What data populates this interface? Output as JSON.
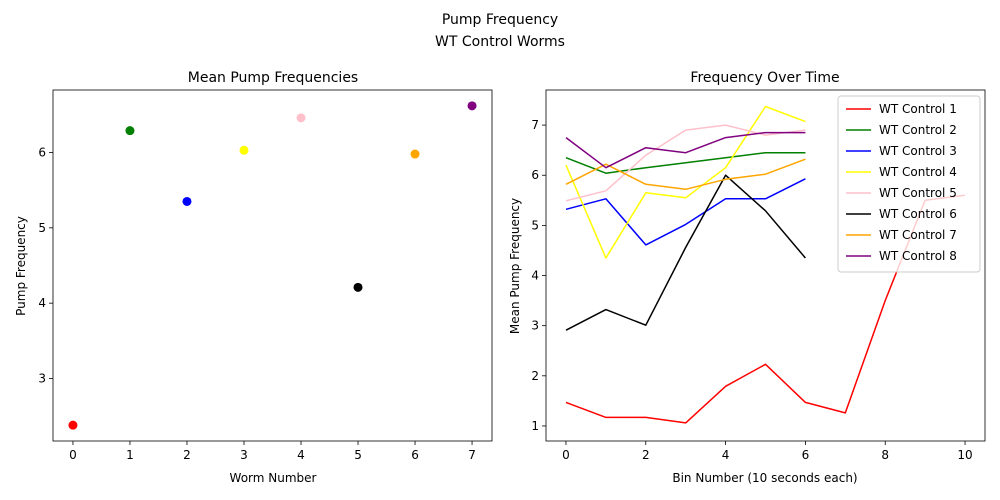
{
  "figure": {
    "suptitle_line1": "Pump Frequency",
    "suptitle_line2": "WT Control Worms"
  },
  "chart_data": [
    {
      "type": "scatter",
      "title": "Mean Pump Frequencies",
      "xlabel": "Worm Number",
      "ylabel": "Pump Frequency",
      "xlim": [
        -0.35,
        7.35
      ],
      "ylim": [
        2.17,
        6.83
      ],
      "xticks": [
        0,
        1,
        2,
        3,
        4,
        5,
        6,
        7
      ],
      "yticks": [
        3,
        4,
        5,
        6
      ],
      "points": [
        {
          "x": 0,
          "y": 2.38,
          "color": "#ff0000"
        },
        {
          "x": 1,
          "y": 6.29,
          "color": "#008000"
        },
        {
          "x": 2,
          "y": 5.35,
          "color": "#0000ff"
        },
        {
          "x": 3,
          "y": 6.03,
          "color": "#ffff00"
        },
        {
          "x": 4,
          "y": 6.46,
          "color": "#ffc0cb"
        },
        {
          "x": 5,
          "y": 4.21,
          "color": "#000000"
        },
        {
          "x": 6,
          "y": 5.98,
          "color": "#ffa500"
        },
        {
          "x": 7,
          "y": 6.62,
          "color": "#800080"
        }
      ],
      "grid": false
    },
    {
      "type": "line",
      "title": "Frequency Over Time",
      "xlabel": "Bin Number (10 seconds each)",
      "ylabel": "Mean Pump Frequency",
      "xlim": [
        -0.5,
        10.5
      ],
      "ylim": [
        0.7,
        7.7
      ],
      "xticks": [
        0,
        2,
        4,
        6,
        8,
        10
      ],
      "yticks": [
        1,
        2,
        3,
        4,
        5,
        6,
        7
      ],
      "legend_position": "top-right",
      "grid": false,
      "series": [
        {
          "name": "WT Control 1",
          "color": "#ff0000",
          "x": [
            0,
            1,
            2,
            3,
            4,
            5,
            6,
            7,
            8,
            9,
            10
          ],
          "y": [
            1.47,
            1.17,
            1.17,
            1.06,
            1.79,
            2.23,
            1.47,
            1.26,
            3.5,
            5.5,
            5.6
          ]
        },
        {
          "name": "WT Control 2",
          "color": "#008000",
          "x": [
            0,
            1,
            2,
            3,
            4,
            5,
            6
          ],
          "y": [
            6.35,
            6.04,
            6.15,
            6.25,
            6.35,
            6.45,
            6.45
          ]
        },
        {
          "name": "WT Control 3",
          "color": "#0000ff",
          "x": [
            0,
            1,
            2,
            3,
            4,
            5,
            6
          ],
          "y": [
            5.32,
            5.53,
            4.61,
            5.02,
            5.53,
            5.53,
            5.93
          ]
        },
        {
          "name": "WT Control 4",
          "color": "#ffff00",
          "x": [
            0,
            1,
            2,
            3,
            4,
            5,
            6
          ],
          "y": [
            6.2,
            4.35,
            5.65,
            5.55,
            6.15,
            7.37,
            7.07
          ]
        },
        {
          "name": "WT Control 5",
          "color": "#ffc0cb",
          "x": [
            0,
            1,
            2,
            3,
            4,
            5,
            6
          ],
          "y": [
            5.49,
            5.69,
            6.4,
            6.9,
            7.0,
            6.8,
            6.9
          ]
        },
        {
          "name": "WT Control 6",
          "color": "#000000",
          "x": [
            0,
            1,
            2,
            3,
            4,
            5,
            6
          ],
          "y": [
            2.91,
            3.32,
            3.01,
            4.56,
            6.0,
            5.29,
            4.35
          ]
        },
        {
          "name": "WT Control 7",
          "color": "#ffa500",
          "x": [
            0,
            1,
            2,
            3,
            4,
            5,
            6
          ],
          "y": [
            5.82,
            6.22,
            5.82,
            5.72,
            5.92,
            6.02,
            6.32
          ]
        },
        {
          "name": "WT Control 8",
          "color": "#800080",
          "x": [
            0,
            1,
            2,
            3,
            4,
            5,
            6
          ],
          "y": [
            6.75,
            6.15,
            6.55,
            6.45,
            6.75,
            6.85,
            6.85
          ]
        }
      ]
    }
  ]
}
